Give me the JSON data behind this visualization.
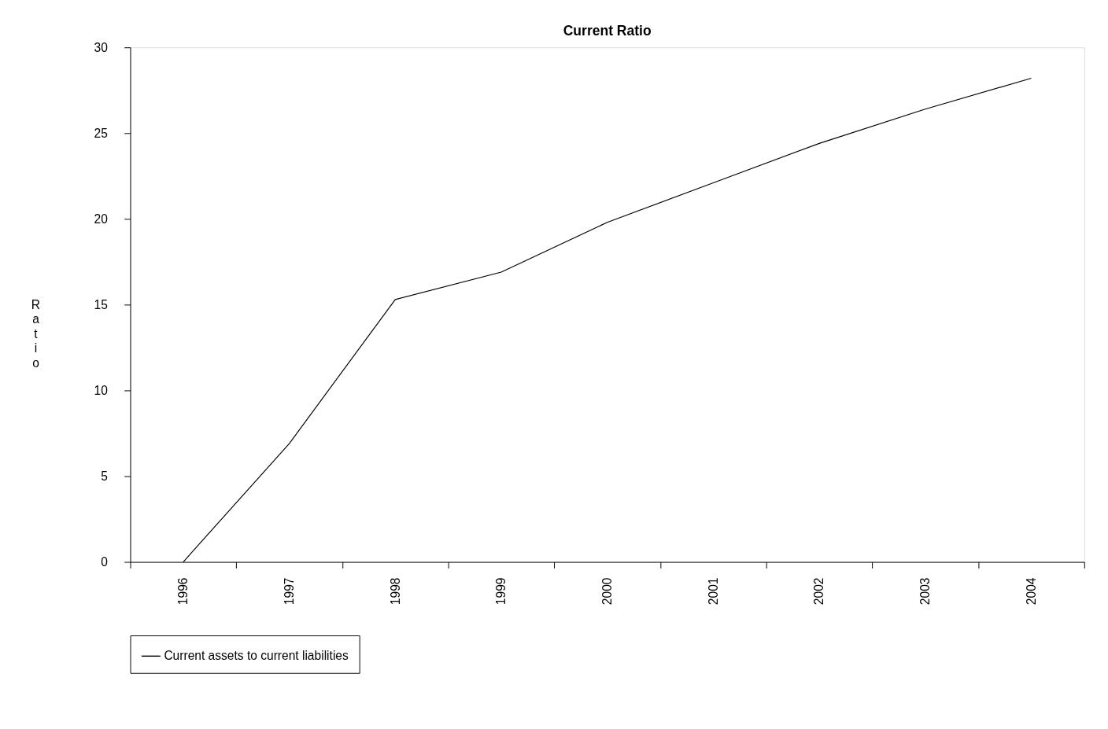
{
  "chart_data": {
    "type": "line",
    "title": "Current Ratio",
    "ylabel": "Ratio",
    "categories": [
      "1996",
      "1997",
      "1998",
      "1999",
      "2000",
      "2001",
      "2002",
      "2003",
      "2004"
    ],
    "series": [
      {
        "name": "Current assets to current liabilities",
        "color": "#000000",
        "values": [
          0,
          6.9,
          15.3,
          16.9,
          19.8,
          22.1,
          24.4,
          26.4,
          28.2
        ]
      }
    ],
    "ylim": [
      0,
      30
    ],
    "yticks": [
      0,
      5,
      10,
      15,
      20,
      25,
      30
    ],
    "grid": false,
    "legend": "bottom",
    "marker": "none",
    "line_style": "solid"
  }
}
